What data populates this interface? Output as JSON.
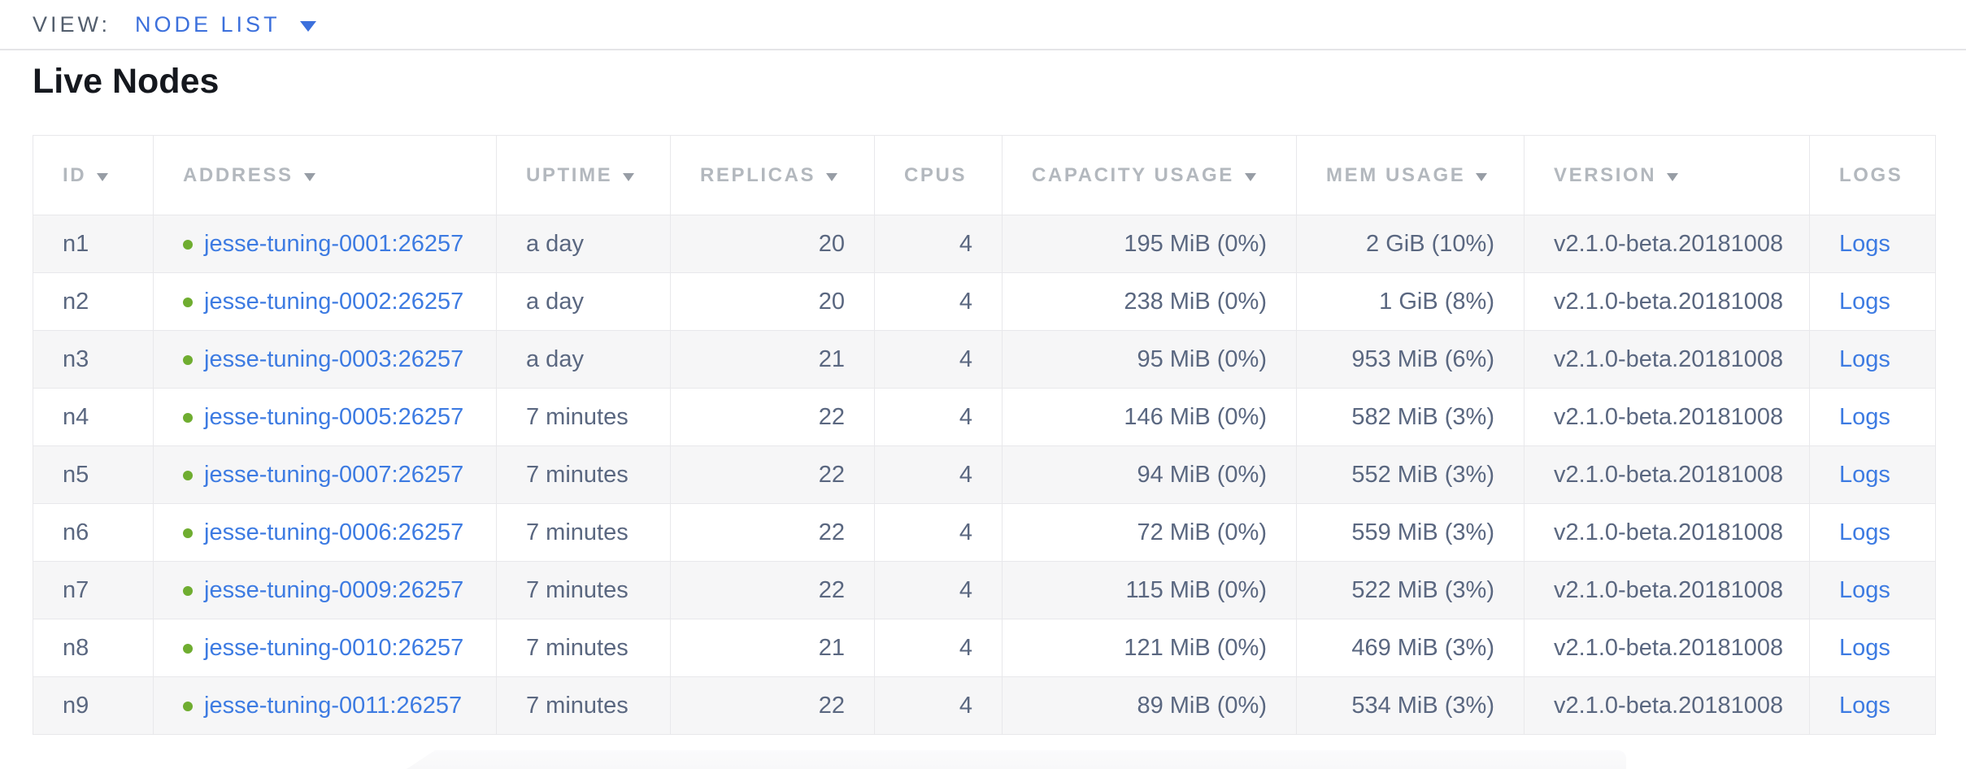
{
  "view_bar": {
    "label": "VIEW:",
    "selected": "NODE LIST"
  },
  "page_title": "Live Nodes",
  "table": {
    "columns": [
      {
        "key": "id",
        "label": "ID",
        "sortable": true
      },
      {
        "key": "address",
        "label": "ADDRESS",
        "sortable": true
      },
      {
        "key": "uptime",
        "label": "UPTIME",
        "sortable": true
      },
      {
        "key": "replicas",
        "label": "REPLICAS",
        "sortable": true
      },
      {
        "key": "cpus",
        "label": "CPUS",
        "sortable": false
      },
      {
        "key": "capacity_usage",
        "label": "CAPACITY USAGE",
        "sortable": true
      },
      {
        "key": "mem_usage",
        "label": "MEM USAGE",
        "sortable": true
      },
      {
        "key": "version",
        "label": "VERSION",
        "sortable": true
      },
      {
        "key": "logs",
        "label": "LOGS",
        "sortable": false
      }
    ],
    "rows": [
      {
        "id": "n1",
        "status": "live",
        "address": "jesse-tuning-0001:26257",
        "uptime": "a day",
        "replicas": "20",
        "cpus": "4",
        "capacity_usage": "195 MiB (0%)",
        "mem_usage": "2 GiB (10%)",
        "version": "v2.1.0-beta.20181008",
        "logs": "Logs"
      },
      {
        "id": "n2",
        "status": "live",
        "address": "jesse-tuning-0002:26257",
        "uptime": "a day",
        "replicas": "20",
        "cpus": "4",
        "capacity_usage": "238 MiB (0%)",
        "mem_usage": "1 GiB (8%)",
        "version": "v2.1.0-beta.20181008",
        "logs": "Logs"
      },
      {
        "id": "n3",
        "status": "live",
        "address": "jesse-tuning-0003:26257",
        "uptime": "a day",
        "replicas": "21",
        "cpus": "4",
        "capacity_usage": "95 MiB (0%)",
        "mem_usage": "953 MiB (6%)",
        "version": "v2.1.0-beta.20181008",
        "logs": "Logs"
      },
      {
        "id": "n4",
        "status": "live",
        "address": "jesse-tuning-0005:26257",
        "uptime": "7 minutes",
        "replicas": "22",
        "cpus": "4",
        "capacity_usage": "146 MiB (0%)",
        "mem_usage": "582 MiB (3%)",
        "version": "v2.1.0-beta.20181008",
        "logs": "Logs"
      },
      {
        "id": "n5",
        "status": "live",
        "address": "jesse-tuning-0007:26257",
        "uptime": "7 minutes",
        "replicas": "22",
        "cpus": "4",
        "capacity_usage": "94 MiB (0%)",
        "mem_usage": "552 MiB (3%)",
        "version": "v2.1.0-beta.20181008",
        "logs": "Logs"
      },
      {
        "id": "n6",
        "status": "live",
        "address": "jesse-tuning-0006:26257",
        "uptime": "7 minutes",
        "replicas": "22",
        "cpus": "4",
        "capacity_usage": "72 MiB (0%)",
        "mem_usage": "559 MiB (3%)",
        "version": "v2.1.0-beta.20181008",
        "logs": "Logs"
      },
      {
        "id": "n7",
        "status": "live",
        "address": "jesse-tuning-0009:26257",
        "uptime": "7 minutes",
        "replicas": "22",
        "cpus": "4",
        "capacity_usage": "115 MiB (0%)",
        "mem_usage": "522 MiB (3%)",
        "version": "v2.1.0-beta.20181008",
        "logs": "Logs"
      },
      {
        "id": "n8",
        "status": "live",
        "address": "jesse-tuning-0010:26257",
        "uptime": "7 minutes",
        "replicas": "21",
        "cpus": "4",
        "capacity_usage": "121 MiB (0%)",
        "mem_usage": "469 MiB (3%)",
        "version": "v2.1.0-beta.20181008",
        "logs": "Logs"
      },
      {
        "id": "n9",
        "status": "live",
        "address": "jesse-tuning-0011:26257",
        "uptime": "7 minutes",
        "replicas": "22",
        "cpus": "4",
        "capacity_usage": "89 MiB (0%)",
        "mem_usage": "534 MiB (3%)",
        "version": "v2.1.0-beta.20181008",
        "logs": "Logs"
      }
    ]
  },
  "colors": {
    "link_blue": "#3d7be2",
    "selector_blue": "#3c70dc",
    "live_green": "#6fad30",
    "row_stripe": "#f6f6f7",
    "grid_line": "#e8e8eb",
    "header_text": "#b3b8be",
    "sort_arrow": "#979da5",
    "cell_text": "#5a6780"
  }
}
